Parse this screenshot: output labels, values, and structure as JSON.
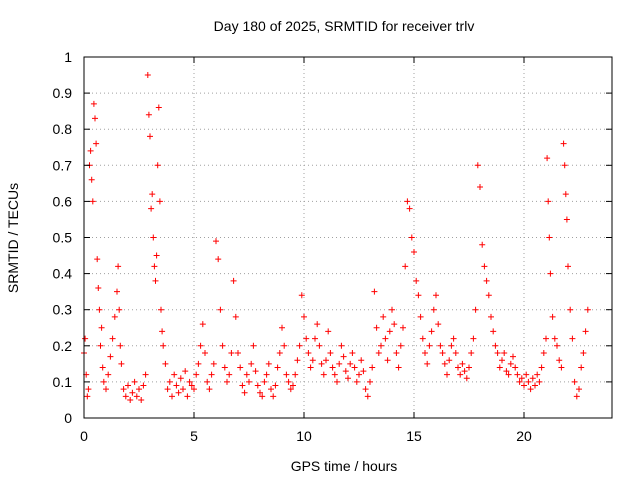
{
  "chart_data": {
    "type": "scatter",
    "title": "Day 180 of 2025, SRMTID for receiver trlv",
    "xlabel": "GPS time / hours",
    "ylabel": "SRMTID / TECUs",
    "xlim": [
      0,
      24
    ],
    "ylim": [
      0,
      1
    ],
    "x_ticks": [
      0,
      5,
      10,
      15,
      20
    ],
    "x_tick_labels": [
      "0",
      "5",
      "10",
      "15",
      "20"
    ],
    "y_ticks": [
      0,
      0.1,
      0.2,
      0.3,
      0.4,
      0.5,
      0.6,
      0.7,
      0.8,
      0.9,
      1
    ],
    "y_tick_labels": [
      "0",
      "0.1",
      "0.2",
      "0.3",
      "0.4",
      "0.5",
      "0.6",
      "0.7",
      "0.8",
      "0.9",
      "1"
    ],
    "grid": true,
    "marker": "+",
    "series": [
      {
        "name": "SRMTID",
        "color": "#ff0000",
        "x": [
          0.0,
          0.05,
          0.1,
          0.15,
          0.2,
          0.25,
          0.3,
          0.35,
          0.4,
          0.45,
          0.5,
          0.55,
          0.6,
          0.65,
          0.7,
          0.75,
          0.8,
          0.85,
          0.9,
          1.0,
          1.1,
          1.2,
          1.3,
          1.4,
          1.5,
          1.55,
          1.6,
          1.65,
          1.7,
          1.8,
          1.9,
          2.0,
          2.1,
          2.2,
          2.3,
          2.4,
          2.5,
          2.6,
          2.7,
          2.8,
          2.9,
          2.95,
          3.0,
          3.05,
          3.1,
          3.15,
          3.2,
          3.25,
          3.3,
          3.35,
          3.4,
          3.45,
          3.5,
          3.55,
          3.6,
          3.7,
          3.8,
          3.9,
          4.0,
          4.1,
          4.2,
          4.3,
          4.4,
          4.5,
          4.6,
          4.7,
          4.8,
          4.9,
          5.0,
          5.1,
          5.2,
          5.3,
          5.4,
          5.5,
          5.6,
          5.7,
          5.8,
          5.9,
          6.0,
          6.1,
          6.2,
          6.3,
          6.4,
          6.5,
          6.6,
          6.7,
          6.8,
          6.9,
          7.0,
          7.1,
          7.2,
          7.3,
          7.4,
          7.5,
          7.6,
          7.7,
          7.8,
          7.9,
          8.0,
          8.1,
          8.2,
          8.3,
          8.4,
          8.5,
          8.6,
          8.7,
          8.8,
          8.9,
          9.0,
          9.1,
          9.2,
          9.3,
          9.4,
          9.5,
          9.6,
          9.7,
          9.8,
          9.9,
          10.0,
          10.1,
          10.2,
          10.3,
          10.4,
          10.5,
          10.6,
          10.7,
          10.8,
          10.9,
          11.0,
          11.1,
          11.2,
          11.3,
          11.4,
          11.5,
          11.6,
          11.7,
          11.8,
          11.9,
          12.0,
          12.1,
          12.2,
          12.3,
          12.4,
          12.5,
          12.6,
          12.7,
          12.8,
          12.9,
          13.0,
          13.1,
          13.2,
          13.3,
          13.4,
          13.5,
          13.6,
          13.7,
          13.8,
          13.9,
          14.0,
          14.1,
          14.2,
          14.3,
          14.4,
          14.5,
          14.6,
          14.7,
          14.8,
          14.9,
          15.0,
          15.1,
          15.2,
          15.3,
          15.4,
          15.5,
          15.6,
          15.7,
          15.8,
          15.9,
          16.0,
          16.1,
          16.2,
          16.3,
          16.4,
          16.5,
          16.6,
          16.7,
          16.8,
          16.9,
          17.0,
          17.1,
          17.2,
          17.3,
          17.4,
          17.5,
          17.6,
          17.7,
          17.8,
          17.9,
          18.0,
          18.1,
          18.2,
          18.3,
          18.4,
          18.5,
          18.6,
          18.7,
          18.8,
          18.9,
          19.0,
          19.1,
          19.2,
          19.3,
          19.4,
          19.5,
          19.6,
          19.7,
          19.8,
          19.9,
          20.0,
          20.1,
          20.2,
          20.3,
          20.4,
          20.5,
          20.6,
          20.7,
          20.8,
          20.9,
          21.0,
          21.05,
          21.1,
          21.15,
          21.2,
          21.3,
          21.4,
          21.5,
          21.6,
          21.7,
          21.8,
          21.85,
          21.9,
          21.95,
          22.0,
          22.1,
          22.2,
          22.3,
          22.4,
          22.5,
          22.6,
          22.7,
          22.8,
          22.9
        ],
        "y": [
          0.18,
          0.22,
          0.12,
          0.06,
          0.08,
          0.7,
          0.74,
          0.66,
          0.6,
          0.87,
          0.83,
          0.76,
          0.44,
          0.36,
          0.3,
          0.2,
          0.25,
          0.14,
          0.1,
          0.08,
          0.12,
          0.17,
          0.22,
          0.28,
          0.35,
          0.42,
          0.3,
          0.2,
          0.15,
          0.08,
          0.06,
          0.09,
          0.05,
          0.07,
          0.1,
          0.06,
          0.08,
          0.05,
          0.09,
          0.12,
          0.95,
          0.84,
          0.78,
          0.58,
          0.62,
          0.5,
          0.42,
          0.38,
          0.45,
          0.7,
          0.86,
          0.6,
          0.3,
          0.24,
          0.2,
          0.15,
          0.08,
          0.1,
          0.06,
          0.12,
          0.09,
          0.07,
          0.11,
          0.08,
          0.13,
          0.06,
          0.1,
          0.09,
          0.08,
          0.12,
          0.15,
          0.2,
          0.26,
          0.18,
          0.1,
          0.08,
          0.12,
          0.15,
          0.49,
          0.44,
          0.3,
          0.2,
          0.14,
          0.1,
          0.12,
          0.18,
          0.38,
          0.28,
          0.18,
          0.14,
          0.09,
          0.07,
          0.12,
          0.1,
          0.15,
          0.2,
          0.13,
          0.09,
          0.07,
          0.06,
          0.1,
          0.12,
          0.15,
          0.08,
          0.06,
          0.09,
          0.14,
          0.18,
          0.25,
          0.2,
          0.12,
          0.1,
          0.08,
          0.09,
          0.12,
          0.16,
          0.2,
          0.34,
          0.28,
          0.22,
          0.18,
          0.14,
          0.16,
          0.22,
          0.26,
          0.2,
          0.15,
          0.12,
          0.16,
          0.24,
          0.18,
          0.14,
          0.12,
          0.1,
          0.15,
          0.2,
          0.17,
          0.13,
          0.11,
          0.15,
          0.18,
          0.14,
          0.1,
          0.12,
          0.16,
          0.13,
          0.08,
          0.06,
          0.1,
          0.14,
          0.35,
          0.25,
          0.18,
          0.2,
          0.28,
          0.22,
          0.16,
          0.24,
          0.3,
          0.26,
          0.18,
          0.14,
          0.2,
          0.25,
          0.42,
          0.6,
          0.58,
          0.5,
          0.46,
          0.38,
          0.34,
          0.28,
          0.22,
          0.18,
          0.15,
          0.2,
          0.24,
          0.3,
          0.34,
          0.26,
          0.2,
          0.18,
          0.15,
          0.12,
          0.16,
          0.2,
          0.22,
          0.18,
          0.14,
          0.12,
          0.15,
          0.13,
          0.11,
          0.14,
          0.18,
          0.22,
          0.3,
          0.7,
          0.64,
          0.48,
          0.42,
          0.38,
          0.34,
          0.28,
          0.24,
          0.2,
          0.18,
          0.14,
          0.16,
          0.18,
          0.13,
          0.12,
          0.15,
          0.17,
          0.14,
          0.12,
          0.1,
          0.11,
          0.09,
          0.12,
          0.1,
          0.08,
          0.11,
          0.09,
          0.12,
          0.1,
          0.14,
          0.18,
          0.22,
          0.72,
          0.6,
          0.5,
          0.4,
          0.28,
          0.22,
          0.2,
          0.16,
          0.14,
          0.76,
          0.7,
          0.62,
          0.55,
          0.42,
          0.3,
          0.22,
          0.1,
          0.06,
          0.08,
          0.14,
          0.18,
          0.24,
          0.3
        ]
      }
    ]
  }
}
